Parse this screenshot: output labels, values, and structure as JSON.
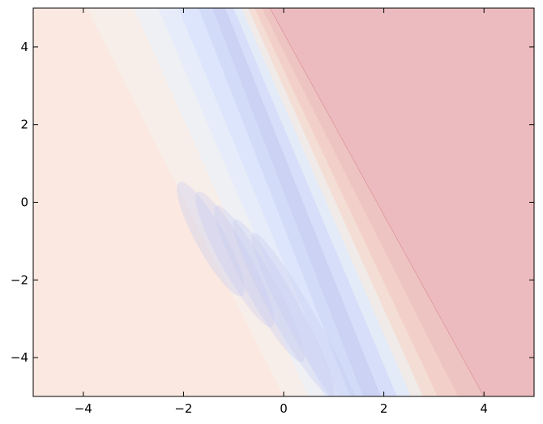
{
  "chart_data": {
    "type": "contour",
    "xlim": [
      -5,
      5
    ],
    "ylim": [
      -5,
      5
    ],
    "xticks": [
      {
        "value": -4,
        "label": "−4"
      },
      {
        "value": -2,
        "label": "−2"
      },
      0,
      2,
      4
    ],
    "yticks": [
      {
        "value": -4,
        "label": "−4"
      },
      {
        "value": -2,
        "label": "−2"
      },
      0,
      2,
      4
    ]
  }
}
